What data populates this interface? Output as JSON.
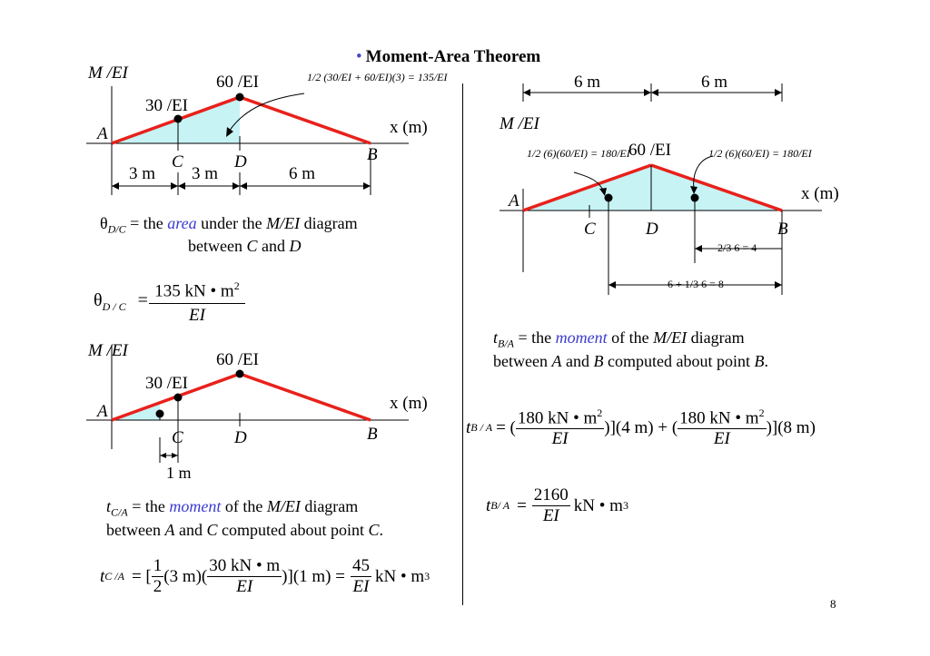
{
  "title": "Moment-Area Theorem",
  "bullet": "•",
  "page_number": "8",
  "diagram1": {
    "axis_label": "M /EI",
    "peak_label": "60 /EI",
    "c_label": "30 /EI",
    "x_axis": "x (m)",
    "point_a": "A",
    "point_c": "C",
    "point_d": "D",
    "point_b": "B",
    "dim1": "3 m",
    "dim2": "3 m",
    "dim3": "6 m",
    "area_formula": "1/2 (30/EI + 60/EI)(3) = 135/EI"
  },
  "theta_text": {
    "symbol": "θ",
    "sub": "D/C",
    "eq": " = the ",
    "word": "area",
    "rest": " under the ",
    "diag": "M/EI",
    "rest2": " diagram",
    "line2_pre": "between ",
    "line2_c": "C",
    "line2_and": " and ",
    "line2_d": "D"
  },
  "theta_eq": {
    "lhs_symbol": "θ",
    "lhs_sub": "D / C",
    "equals": "=",
    "numerator": "135 kN • m",
    "exp": "2",
    "denominator": "EI"
  },
  "diagram2": {
    "axis_label": "M /EI",
    "peak_label": "60 /EI",
    "c_label": "30 /EI",
    "x_axis": "x (m)",
    "point_a": "A",
    "point_c": "C",
    "point_d": "D",
    "point_b": "B",
    "dim": "1 m"
  },
  "tca_text": {
    "t": "t",
    "sub": "C/A",
    "eq": " = the ",
    "word": "moment",
    "rest": " of the ",
    "diag": "M/EI",
    "rest2": " diagram",
    "line2_pre": "between ",
    "line2_a": "A",
    "line2_and": " and ",
    "line2_c": "C",
    "line2_mid": " computed about point ",
    "line2_pt": "C",
    "line2_end": "."
  },
  "tca_eq": {
    "t": "t",
    "sub": "C /A",
    "eq": "= [",
    "half_num": "1",
    "half_den": "2",
    "mid": "(3 m)(",
    "frac_num": "30 kN • m",
    "frac_den": "EI",
    "close": ")](1 m) =",
    "res_num": "45",
    "res_den": "EI",
    "unit": "kN • m",
    "exp": "3"
  },
  "diagram3": {
    "dim_top1": "6 m",
    "dim_top2": "6 m",
    "axis_label": "M /EI",
    "peak_label": "60 /EI",
    "x_axis": "x (m)",
    "point_a": "A",
    "point_c": "C",
    "point_d": "D",
    "point_b": "B",
    "left_formula": "1/2 (6)(60/EI) = 180/EI",
    "right_formula": "1/2 (6)(60/EI) = 180/EI",
    "dim_small": "2/3 6 = 4",
    "dim_big": "6 + 1/3 6 = 8"
  },
  "tba_text": {
    "t": "t",
    "sub": "B/A",
    "eq": " = the ",
    "word": "moment",
    "rest": " of the ",
    "diag": "M/EI",
    "rest2": " diagram",
    "line2_pre": "between ",
    "line2_a": "A",
    "line2_and": " and ",
    "line2_b": "B",
    "line2_mid": " computed about point ",
    "line2_pt": "B",
    "line2_end": "."
  },
  "tba_eq1": {
    "t": "t",
    "sub": "B / A",
    "eq": "= (",
    "n1": "180 kN • m",
    "e1": "2",
    "d1": "EI",
    "mid": ")](4 m) + (",
    "n2": "180 kN • m",
    "e2": "2",
    "d2": "EI",
    "end": ")](8 m)"
  },
  "tba_eq2": {
    "t": "t",
    "sub": "B/ A",
    "eq": "=",
    "num": "2160",
    "den": "EI",
    "unit": "kN • m",
    "exp": "3"
  },
  "colors": {
    "line": "#e8211b",
    "fill": "#c7f3f5",
    "accent_text": "#3b3bd0"
  }
}
